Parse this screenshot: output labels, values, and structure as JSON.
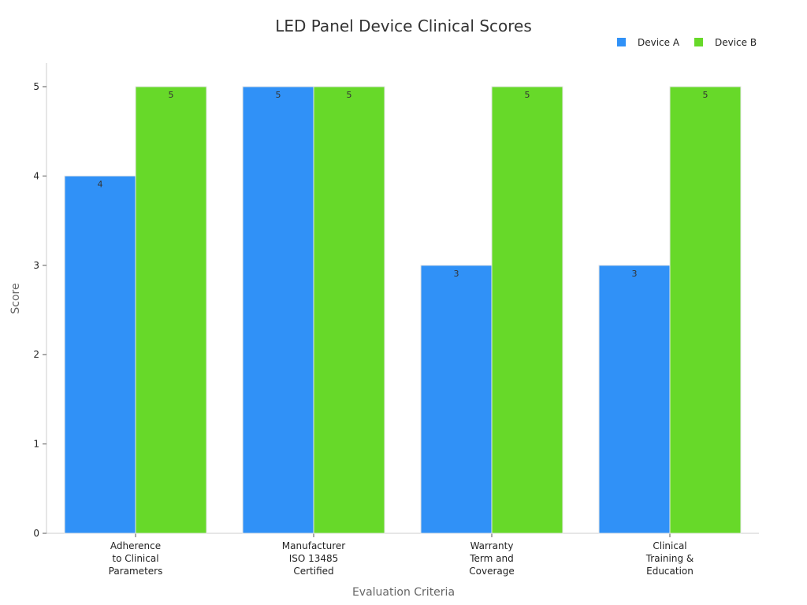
{
  "chart_data": {
    "type": "bar",
    "title": "LED Panel Device Clinical Scores",
    "xlabel": "Evaluation Criteria",
    "ylabel": "Score",
    "ylim": [
      0,
      5
    ],
    "yticks": [
      0,
      1,
      2,
      3,
      4,
      5
    ],
    "grid": false,
    "legend_position": "top-right",
    "categories": [
      [
        "Adherence",
        "to Clinical",
        "Parameters"
      ],
      [
        "Manufacturer",
        "ISO 13485",
        "Certified"
      ],
      [
        "Warranty",
        "Term and",
        "Coverage"
      ],
      [
        "Clinical",
        "Training &",
        "Education"
      ]
    ],
    "series": [
      {
        "name": "Device A",
        "color": "#3091f7",
        "values": [
          4,
          5,
          3,
          3
        ]
      },
      {
        "name": "Device B",
        "color": "#67d929",
        "values": [
          5,
          5,
          5,
          5
        ]
      }
    ]
  }
}
